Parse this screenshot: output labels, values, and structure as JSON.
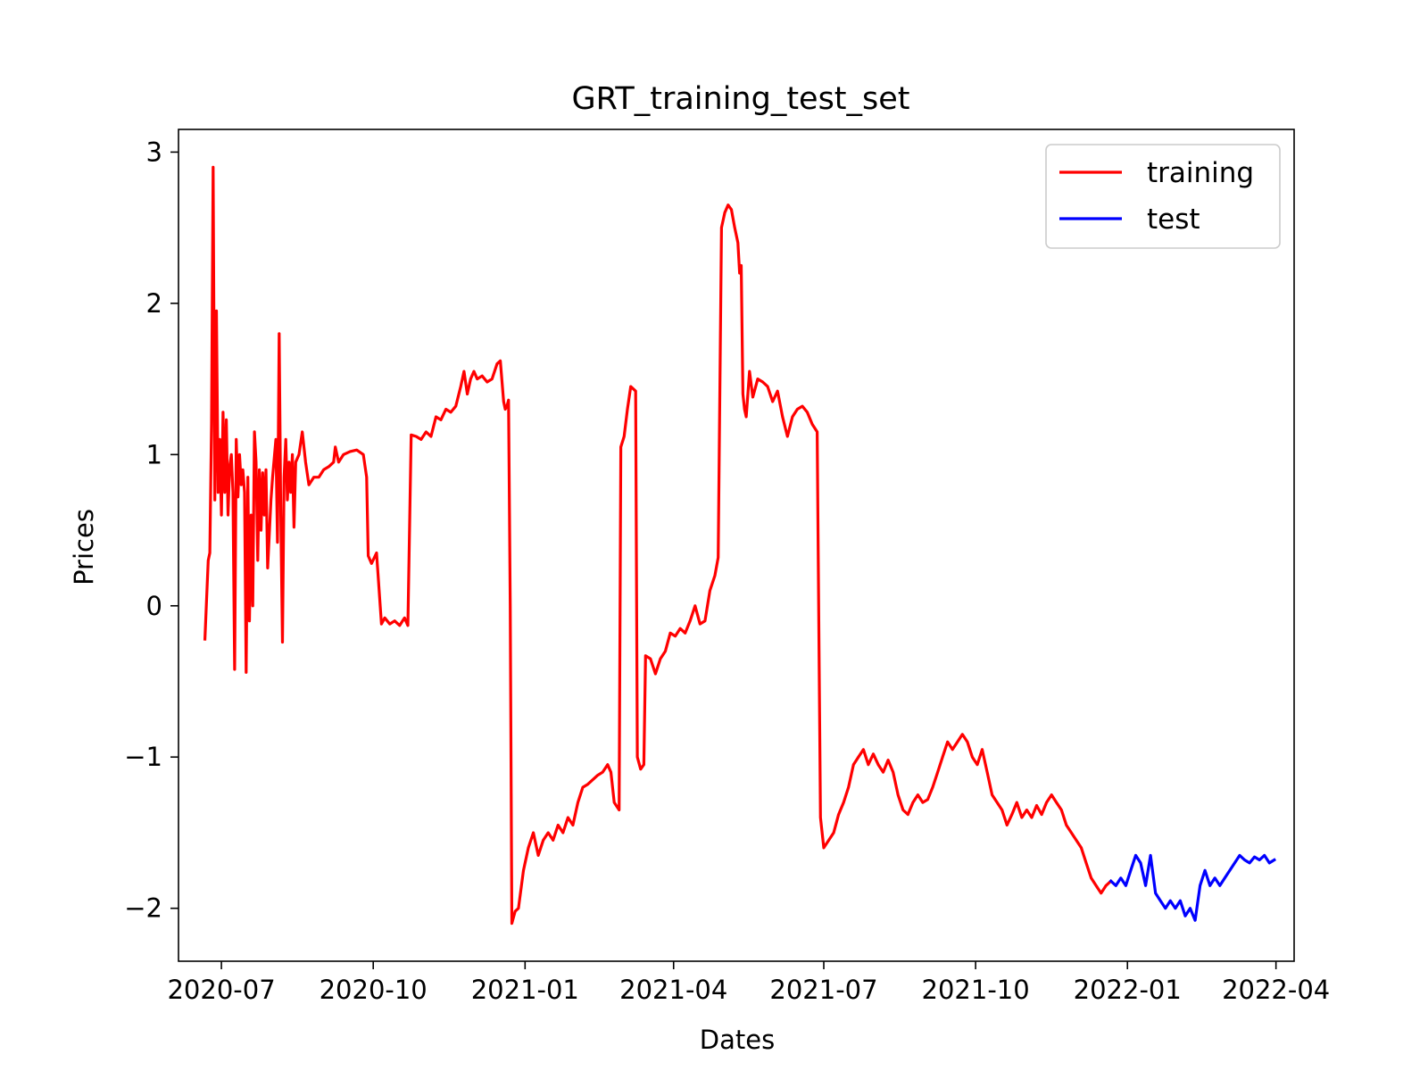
{
  "chart_data": {
    "type": "line",
    "title": "GRT_training_test_set",
    "xlabel": "Dates",
    "ylabel": "Prices",
    "xlim": [
      "2020-06-05",
      "2022-04-12"
    ],
    "ylim": [
      -2.35,
      3.15
    ],
    "x_ticks": [
      "2020-07-01",
      "2020-10-01",
      "2021-01-01",
      "2021-04-01",
      "2021-07-01",
      "2021-10-01",
      "2022-01-01",
      "2022-04-01"
    ],
    "x_tick_labels": [
      "2020-07",
      "2020-10",
      "2021-01",
      "2021-04",
      "2021-07",
      "2021-10",
      "2022-01",
      "2022-04"
    ],
    "y_ticks": [
      3,
      2,
      1,
      0,
      -1,
      -2
    ],
    "y_tick_labels": [
      "3",
      "2",
      "1",
      "0",
      "−1",
      "−2"
    ],
    "grid": false,
    "legend_position": "top-right",
    "series": [
      {
        "name": "training",
        "color": "#ff0000",
        "points": [
          [
            "2020-06-21",
            -0.22
          ],
          [
            "2020-06-23",
            0.3
          ],
          [
            "2020-06-24",
            0.35
          ],
          [
            "2020-06-25",
            1.2
          ],
          [
            "2020-06-26",
            2.9
          ],
          [
            "2020-06-27",
            0.7
          ],
          [
            "2020-06-28",
            1.95
          ],
          [
            "2020-06-29",
            0.75
          ],
          [
            "2020-06-30",
            1.1
          ],
          [
            "2020-07-01",
            0.6
          ],
          [
            "2020-07-02",
            1.28
          ],
          [
            "2020-07-03",
            0.75
          ],
          [
            "2020-07-04",
            1.23
          ],
          [
            "2020-07-05",
            0.6
          ],
          [
            "2020-07-06",
            0.92
          ],
          [
            "2020-07-07",
            1.0
          ],
          [
            "2020-07-08",
            0.75
          ],
          [
            "2020-07-09",
            -0.42
          ],
          [
            "2020-07-10",
            1.1
          ],
          [
            "2020-07-11",
            0.72
          ],
          [
            "2020-07-12",
            1.0
          ],
          [
            "2020-07-13",
            0.8
          ],
          [
            "2020-07-14",
            0.9
          ],
          [
            "2020-07-15",
            0.75
          ],
          [
            "2020-07-16",
            -0.44
          ],
          [
            "2020-07-17",
            0.85
          ],
          [
            "2020-07-18",
            -0.1
          ],
          [
            "2020-07-19",
            0.6
          ],
          [
            "2020-07-20",
            0.0
          ],
          [
            "2020-07-21",
            1.15
          ],
          [
            "2020-07-22",
            0.95
          ],
          [
            "2020-07-23",
            0.3
          ],
          [
            "2020-07-24",
            0.9
          ],
          [
            "2020-07-25",
            0.5
          ],
          [
            "2020-07-26",
            0.88
          ],
          [
            "2020-07-27",
            0.6
          ],
          [
            "2020-07-28",
            0.9
          ],
          [
            "2020-07-29",
            0.25
          ],
          [
            "2020-07-31",
            0.7
          ],
          [
            "2020-08-01",
            0.85
          ],
          [
            "2020-08-03",
            1.1
          ],
          [
            "2020-08-04",
            0.42
          ],
          [
            "2020-08-05",
            1.8
          ],
          [
            "2020-08-06",
            0.6
          ],
          [
            "2020-08-07",
            -0.24
          ],
          [
            "2020-08-08",
            0.85
          ],
          [
            "2020-08-09",
            1.1
          ],
          [
            "2020-08-10",
            0.7
          ],
          [
            "2020-08-11",
            0.95
          ],
          [
            "2020-08-12",
            0.75
          ],
          [
            "2020-08-13",
            1.0
          ],
          [
            "2020-08-14",
            0.52
          ],
          [
            "2020-08-15",
            0.95
          ],
          [
            "2020-08-17",
            1.0
          ],
          [
            "2020-08-19",
            1.15
          ],
          [
            "2020-08-21",
            0.95
          ],
          [
            "2020-08-23",
            0.8
          ],
          [
            "2020-08-26",
            0.85
          ],
          [
            "2020-08-29",
            0.85
          ],
          [
            "2020-09-01",
            0.9
          ],
          [
            "2020-09-04",
            0.92
          ],
          [
            "2020-09-07",
            0.95
          ],
          [
            "2020-09-08",
            1.05
          ],
          [
            "2020-09-10",
            0.95
          ],
          [
            "2020-09-13",
            1.0
          ],
          [
            "2020-09-17",
            1.02
          ],
          [
            "2020-09-21",
            1.03
          ],
          [
            "2020-09-25",
            1.0
          ],
          [
            "2020-09-27",
            0.85
          ],
          [
            "2020-09-28",
            0.33
          ],
          [
            "2020-09-30",
            0.28
          ],
          [
            "2020-10-03",
            0.35
          ],
          [
            "2020-10-06",
            -0.12
          ],
          [
            "2020-10-08",
            -0.08
          ],
          [
            "2020-10-11",
            -0.12
          ],
          [
            "2020-10-14",
            -0.1
          ],
          [
            "2020-10-17",
            -0.13
          ],
          [
            "2020-10-20",
            -0.08
          ],
          [
            "2020-10-22",
            -0.13
          ],
          [
            "2020-10-24",
            1.13
          ],
          [
            "2020-10-27",
            1.12
          ],
          [
            "2020-10-30",
            1.1
          ],
          [
            "2020-11-02",
            1.15
          ],
          [
            "2020-11-05",
            1.12
          ],
          [
            "2020-11-08",
            1.25
          ],
          [
            "2020-11-11",
            1.23
          ],
          [
            "2020-11-14",
            1.3
          ],
          [
            "2020-11-17",
            1.28
          ],
          [
            "2020-11-20",
            1.32
          ],
          [
            "2020-11-23",
            1.45
          ],
          [
            "2020-11-25",
            1.55
          ],
          [
            "2020-11-27",
            1.4
          ],
          [
            "2020-11-29",
            1.5
          ],
          [
            "2020-12-01",
            1.55
          ],
          [
            "2020-12-03",
            1.5
          ],
          [
            "2020-12-06",
            1.52
          ],
          [
            "2020-12-09",
            1.48
          ],
          [
            "2020-12-12",
            1.5
          ],
          [
            "2020-12-15",
            1.6
          ],
          [
            "2020-12-17",
            1.62
          ],
          [
            "2020-12-19",
            1.35
          ],
          [
            "2020-12-20",
            1.3
          ],
          [
            "2020-12-21",
            1.32
          ],
          [
            "2020-12-22",
            1.36
          ],
          [
            "2020-12-23",
            0.0
          ],
          [
            "2020-12-24",
            -2.1
          ],
          [
            "2020-12-26",
            -2.02
          ],
          [
            "2020-12-28",
            -2.0
          ],
          [
            "2020-12-31",
            -1.75
          ],
          [
            "2021-01-03",
            -1.6
          ],
          [
            "2021-01-06",
            -1.5
          ],
          [
            "2021-01-09",
            -1.65
          ],
          [
            "2021-01-12",
            -1.55
          ],
          [
            "2021-01-15",
            -1.5
          ],
          [
            "2021-01-18",
            -1.55
          ],
          [
            "2021-01-21",
            -1.45
          ],
          [
            "2021-01-24",
            -1.5
          ],
          [
            "2021-01-27",
            -1.4
          ],
          [
            "2021-01-30",
            -1.45
          ],
          [
            "2021-02-02",
            -1.3
          ],
          [
            "2021-02-05",
            -1.2
          ],
          [
            "2021-02-08",
            -1.18
          ],
          [
            "2021-02-11",
            -1.15
          ],
          [
            "2021-02-14",
            -1.12
          ],
          [
            "2021-02-17",
            -1.1
          ],
          [
            "2021-02-20",
            -1.05
          ],
          [
            "2021-02-22",
            -1.1
          ],
          [
            "2021-02-24",
            -1.3
          ],
          [
            "2021-02-27",
            -1.35
          ],
          [
            "2021-02-28",
            1.05
          ],
          [
            "2021-03-02",
            1.12
          ],
          [
            "2021-03-04",
            1.3
          ],
          [
            "2021-03-06",
            1.45
          ],
          [
            "2021-03-09",
            1.42
          ],
          [
            "2021-03-10",
            -1.0
          ],
          [
            "2021-03-12",
            -1.08
          ],
          [
            "2021-03-14",
            -1.05
          ],
          [
            "2021-03-15",
            -0.33
          ],
          [
            "2021-03-18",
            -0.35
          ],
          [
            "2021-03-21",
            -0.45
          ],
          [
            "2021-03-24",
            -0.35
          ],
          [
            "2021-03-27",
            -0.3
          ],
          [
            "2021-03-30",
            -0.18
          ],
          [
            "2021-04-02",
            -0.2
          ],
          [
            "2021-04-05",
            -0.15
          ],
          [
            "2021-04-08",
            -0.18
          ],
          [
            "2021-04-11",
            -0.1
          ],
          [
            "2021-04-14",
            0.0
          ],
          [
            "2021-04-17",
            -0.12
          ],
          [
            "2021-04-20",
            -0.1
          ],
          [
            "2021-04-23",
            0.1
          ],
          [
            "2021-04-26",
            0.2
          ],
          [
            "2021-04-28",
            0.32
          ],
          [
            "2021-04-30",
            2.5
          ],
          [
            "2021-05-02",
            2.6
          ],
          [
            "2021-05-04",
            2.65
          ],
          [
            "2021-05-06",
            2.62
          ],
          [
            "2021-05-08",
            2.5
          ],
          [
            "2021-05-10",
            2.4
          ],
          [
            "2021-05-11",
            2.2
          ],
          [
            "2021-05-12",
            2.25
          ],
          [
            "2021-05-13",
            1.4
          ],
          [
            "2021-05-14",
            1.3
          ],
          [
            "2021-05-15",
            1.25
          ],
          [
            "2021-05-17",
            1.55
          ],
          [
            "2021-05-19",
            1.38
          ],
          [
            "2021-05-22",
            1.5
          ],
          [
            "2021-05-25",
            1.48
          ],
          [
            "2021-05-28",
            1.45
          ],
          [
            "2021-05-31",
            1.35
          ],
          [
            "2021-06-03",
            1.42
          ],
          [
            "2021-06-06",
            1.25
          ],
          [
            "2021-06-09",
            1.12
          ],
          [
            "2021-06-12",
            1.25
          ],
          [
            "2021-06-15",
            1.3
          ],
          [
            "2021-06-18",
            1.32
          ],
          [
            "2021-06-21",
            1.28
          ],
          [
            "2021-06-24",
            1.2
          ],
          [
            "2021-06-27",
            1.15
          ],
          [
            "2021-06-29",
            -1.4
          ],
          [
            "2021-07-01",
            -1.6
          ],
          [
            "2021-07-04",
            -1.55
          ],
          [
            "2021-07-07",
            -1.5
          ],
          [
            "2021-07-10",
            -1.38
          ],
          [
            "2021-07-13",
            -1.3
          ],
          [
            "2021-07-16",
            -1.2
          ],
          [
            "2021-07-19",
            -1.05
          ],
          [
            "2021-07-22",
            -1.0
          ],
          [
            "2021-07-25",
            -0.95
          ],
          [
            "2021-07-28",
            -1.05
          ],
          [
            "2021-07-31",
            -0.98
          ],
          [
            "2021-08-03",
            -1.05
          ],
          [
            "2021-08-06",
            -1.1
          ],
          [
            "2021-08-09",
            -1.02
          ],
          [
            "2021-08-12",
            -1.1
          ],
          [
            "2021-08-15",
            -1.25
          ],
          [
            "2021-08-18",
            -1.35
          ],
          [
            "2021-08-21",
            -1.38
          ],
          [
            "2021-08-24",
            -1.3
          ],
          [
            "2021-08-27",
            -1.25
          ],
          [
            "2021-08-30",
            -1.3
          ],
          [
            "2021-09-02",
            -1.28
          ],
          [
            "2021-09-05",
            -1.2
          ],
          [
            "2021-09-08",
            -1.1
          ],
          [
            "2021-09-11",
            -1.0
          ],
          [
            "2021-09-14",
            -0.9
          ],
          [
            "2021-09-17",
            -0.95
          ],
          [
            "2021-09-20",
            -0.9
          ],
          [
            "2021-09-23",
            -0.85
          ],
          [
            "2021-09-26",
            -0.9
          ],
          [
            "2021-09-29",
            -1.0
          ],
          [
            "2021-10-02",
            -1.05
          ],
          [
            "2021-10-05",
            -0.95
          ],
          [
            "2021-10-08",
            -1.1
          ],
          [
            "2021-10-11",
            -1.25
          ],
          [
            "2021-10-14",
            -1.3
          ],
          [
            "2021-10-17",
            -1.35
          ],
          [
            "2021-10-20",
            -1.45
          ],
          [
            "2021-10-23",
            -1.38
          ],
          [
            "2021-10-26",
            -1.3
          ],
          [
            "2021-10-29",
            -1.4
          ],
          [
            "2021-11-01",
            -1.35
          ],
          [
            "2021-11-04",
            -1.4
          ],
          [
            "2021-11-07",
            -1.32
          ],
          [
            "2021-11-10",
            -1.38
          ],
          [
            "2021-11-13",
            -1.3
          ],
          [
            "2021-11-16",
            -1.25
          ],
          [
            "2021-11-19",
            -1.3
          ],
          [
            "2021-11-22",
            -1.35
          ],
          [
            "2021-11-25",
            -1.45
          ],
          [
            "2021-11-28",
            -1.5
          ],
          [
            "2021-12-01",
            -1.55
          ],
          [
            "2021-12-04",
            -1.6
          ],
          [
            "2021-12-07",
            -1.7
          ],
          [
            "2021-12-10",
            -1.8
          ],
          [
            "2021-12-13",
            -1.85
          ],
          [
            "2021-12-16",
            -1.9
          ],
          [
            "2021-12-19",
            -1.85
          ],
          [
            "2021-12-22",
            -1.82
          ]
        ]
      },
      {
        "name": "test",
        "color": "#0000ff",
        "points": [
          [
            "2021-12-22",
            -1.82
          ],
          [
            "2021-12-25",
            -1.85
          ],
          [
            "2021-12-28",
            -1.8
          ],
          [
            "2021-12-31",
            -1.85
          ],
          [
            "2022-01-03",
            -1.75
          ],
          [
            "2022-01-06",
            -1.65
          ],
          [
            "2022-01-09",
            -1.7
          ],
          [
            "2022-01-12",
            -1.85
          ],
          [
            "2022-01-15",
            -1.65
          ],
          [
            "2022-01-18",
            -1.9
          ],
          [
            "2022-01-21",
            -1.95
          ],
          [
            "2022-01-24",
            -2.0
          ],
          [
            "2022-01-27",
            -1.95
          ],
          [
            "2022-01-30",
            -2.0
          ],
          [
            "2022-02-02",
            -1.95
          ],
          [
            "2022-02-05",
            -2.05
          ],
          [
            "2022-02-08",
            -2.0
          ],
          [
            "2022-02-11",
            -2.08
          ],
          [
            "2022-02-14",
            -1.85
          ],
          [
            "2022-02-17",
            -1.75
          ],
          [
            "2022-02-20",
            -1.85
          ],
          [
            "2022-02-23",
            -1.8
          ],
          [
            "2022-02-26",
            -1.85
          ],
          [
            "2022-03-01",
            -1.8
          ],
          [
            "2022-03-04",
            -1.75
          ],
          [
            "2022-03-07",
            -1.7
          ],
          [
            "2022-03-10",
            -1.65
          ],
          [
            "2022-03-13",
            -1.68
          ],
          [
            "2022-03-16",
            -1.7
          ],
          [
            "2022-03-19",
            -1.66
          ],
          [
            "2022-03-22",
            -1.68
          ],
          [
            "2022-03-25",
            -1.65
          ],
          [
            "2022-03-28",
            -1.7
          ],
          [
            "2022-03-31",
            -1.68
          ]
        ]
      }
    ]
  }
}
